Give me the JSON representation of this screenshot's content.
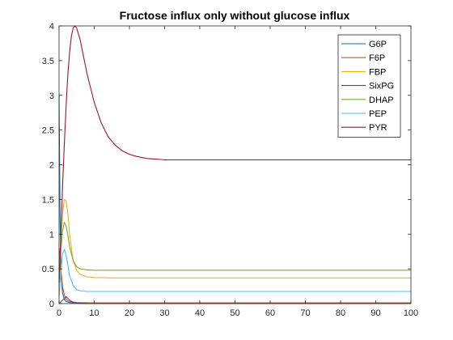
{
  "chart_data": {
    "type": "line",
    "title": "Fructose influx only without glucose influx",
    "xlabel": "",
    "ylabel": "",
    "xlim": [
      0,
      100
    ],
    "ylim": [
      0,
      4
    ],
    "xticks": [
      0,
      10,
      20,
      30,
      40,
      50,
      60,
      70,
      80,
      90,
      100
    ],
    "yticks": [
      0,
      0.5,
      1,
      1.5,
      2,
      2.5,
      3,
      3.5,
      4
    ],
    "xtick_labels": [
      "0",
      "10",
      "20",
      "30",
      "40",
      "50",
      "60",
      "70",
      "80",
      "90",
      "100"
    ],
    "ytick_labels": [
      "0",
      "0.5",
      "1",
      "1.5",
      "2",
      "2.5",
      "3",
      "3.5",
      "4"
    ],
    "grid": false,
    "legend_position": "top-right",
    "series": [
      {
        "name": "G6P",
        "color": "#0072BD",
        "x": [
          0,
          0.3,
          0.6,
          1,
          1.5,
          2,
          3,
          5,
          10,
          100
        ],
        "y": [
          3.0,
          1.2,
          0.4,
          0.15,
          0.06,
          0.03,
          0.015,
          0.01,
          0.01,
          0.01
        ]
      },
      {
        "name": "F6P",
        "color": "#D95319",
        "x": [
          0,
          0.5,
          1,
          1.5,
          2,
          3,
          5,
          10,
          100
        ],
        "y": [
          0.8,
          0.5,
          0.25,
          0.12,
          0.06,
          0.03,
          0.015,
          0.01,
          0.01
        ]
      },
      {
        "name": "FBP",
        "color": "#EDB120",
        "x": [
          0,
          0.5,
          1,
          1.5,
          2,
          2.5,
          3,
          4,
          5,
          6,
          8,
          10,
          15,
          20,
          100
        ],
        "y": [
          0.3,
          0.9,
          1.3,
          1.5,
          1.48,
          1.3,
          1.0,
          0.62,
          0.48,
          0.42,
          0.385,
          0.375,
          0.37,
          0.37,
          0.37
        ]
      },
      {
        "name": "SixPG",
        "color": "#7E2F8E",
        "x": [
          0,
          1,
          2,
          3,
          4,
          6,
          10,
          100
        ],
        "y": [
          0.0,
          0.05,
          0.1,
          0.05,
          0.02,
          0.0,
          0.0,
          0.0
        ]
      },
      {
        "name": "DHAP",
        "color": "#77AC30",
        "x": [
          0,
          0.5,
          1,
          1.5,
          2,
          2.5,
          3,
          4,
          5,
          6,
          8,
          10,
          15,
          20,
          100
        ],
        "y": [
          0.3,
          0.75,
          1.05,
          1.17,
          1.12,
          0.98,
          0.82,
          0.62,
          0.53,
          0.5,
          0.485,
          0.48,
          0.48,
          0.48,
          0.48
        ]
      },
      {
        "name": "PEP",
        "color": "#4DBEEE",
        "x": [
          0,
          0.5,
          1,
          1.5,
          2,
          2.5,
          3,
          4,
          5,
          6,
          8,
          10,
          15,
          20,
          100
        ],
        "y": [
          0.1,
          0.45,
          0.72,
          0.78,
          0.7,
          0.55,
          0.4,
          0.26,
          0.2,
          0.185,
          0.175,
          0.175,
          0.175,
          0.175,
          0.175
        ]
      },
      {
        "name": "PYR",
        "color": "#A2142F",
        "x": [
          0,
          0.5,
          1,
          1.5,
          2,
          2.5,
          3,
          3.5,
          4,
          4.5,
          5,
          6,
          7,
          8,
          10,
          12,
          14,
          16,
          18,
          20,
          22,
          25,
          28,
          30,
          35,
          40,
          50,
          60,
          70,
          80,
          90,
          100
        ],
        "y": [
          0.3,
          0.95,
          1.7,
          2.3,
          2.85,
          3.3,
          3.62,
          3.85,
          3.97,
          4.0,
          3.97,
          3.8,
          3.55,
          3.3,
          2.9,
          2.6,
          2.4,
          2.28,
          2.2,
          2.15,
          2.12,
          2.09,
          2.08,
          2.07,
          2.07,
          2.07,
          2.07,
          2.07,
          2.07,
          2.07,
          2.07,
          2.07
        ]
      }
    ]
  }
}
